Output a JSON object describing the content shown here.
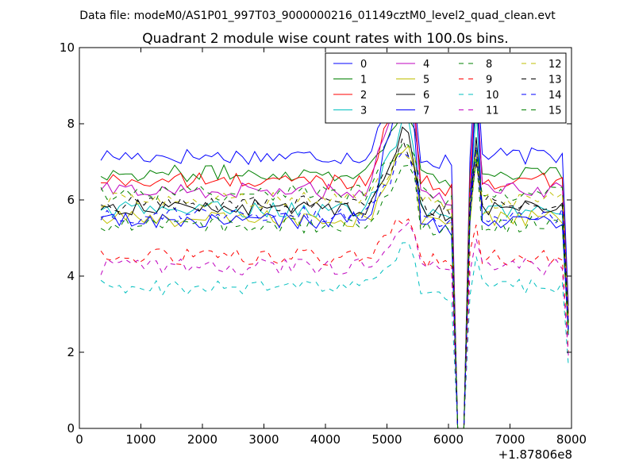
{
  "suptitle": "Data file: modeM0/AS1P01_997T03_9000000216_01149cztM0_level2_quad_clean.evt",
  "chart_data": {
    "type": "line",
    "title": "Quadrant 2 module wise count rates with 100.0s bins.",
    "xlabel": "",
    "ylabel": "",
    "x_offset_label": "+1.87806e8",
    "xlim": [
      0,
      8000
    ],
    "ylim": [
      0,
      10
    ],
    "xticks": [
      0,
      1000,
      2000,
      3000,
      4000,
      5000,
      6000,
      7000,
      8000
    ],
    "yticks": [
      0,
      2,
      4,
      6,
      8,
      10
    ],
    "grid": false,
    "legend_position": "top-right",
    "x_start": 350,
    "x_step": 100,
    "series": [
      {
        "name": "0",
        "color": "#0000ff",
        "dash": "solid",
        "base": 7.15,
        "amp": 0.22,
        "peak": 9.9
      },
      {
        "name": "1",
        "color": "#008000",
        "dash": "solid",
        "base": 6.7,
        "amp": 0.22,
        "peak": 8.7
      },
      {
        "name": "2",
        "color": "#ff0000",
        "dash": "solid",
        "base": 6.5,
        "amp": 0.22,
        "peak": 9.5
      },
      {
        "name": "3",
        "color": "#00bfbf",
        "dash": "solid",
        "base": 5.75,
        "amp": 0.22,
        "peak": 8.6
      },
      {
        "name": "4",
        "color": "#bf00bf",
        "dash": "solid",
        "base": 6.25,
        "amp": 0.22,
        "peak": 9.7
      },
      {
        "name": "5",
        "color": "#bfbf00",
        "dash": "solid",
        "base": 5.5,
        "amp": 0.22,
        "peak": 7.6
      },
      {
        "name": "6",
        "color": "#000000",
        "dash": "solid",
        "base": 5.8,
        "amp": 0.22,
        "peak": 8.0
      },
      {
        "name": "7",
        "color": "#0000ff",
        "dash": "solid",
        "base": 5.45,
        "amp": 0.22,
        "peak": 9.8
      },
      {
        "name": "8",
        "color": "#008000",
        "dash": "dashed",
        "base": 6.2,
        "amp": 0.22,
        "peak": 7.8
      },
      {
        "name": "9",
        "color": "#ff0000",
        "dash": "dashed",
        "base": 4.5,
        "amp": 0.22,
        "peak": 5.8
      },
      {
        "name": "10",
        "color": "#00bfbf",
        "dash": "dashed",
        "base": 3.7,
        "amp": 0.22,
        "peak": 5.0
      },
      {
        "name": "11",
        "color": "#bf00bf",
        "dash": "dashed",
        "base": 4.25,
        "amp": 0.22,
        "peak": 5.5
      },
      {
        "name": "12",
        "color": "#bfbf00",
        "dash": "dashed",
        "base": 6.0,
        "amp": 0.22,
        "peak": 7.5
      },
      {
        "name": "13",
        "color": "#000000",
        "dash": "dashed",
        "base": 5.9,
        "amp": 0.22,
        "peak": 7.6
      },
      {
        "name": "14",
        "color": "#0000ff",
        "dash": "dashed",
        "base": 5.6,
        "amp": 0.22,
        "peak": 7.4
      },
      {
        "name": "15",
        "color": "#008000",
        "dash": "dashed",
        "base": 5.35,
        "amp": 0.22,
        "peak": 7.2
      }
    ]
  }
}
